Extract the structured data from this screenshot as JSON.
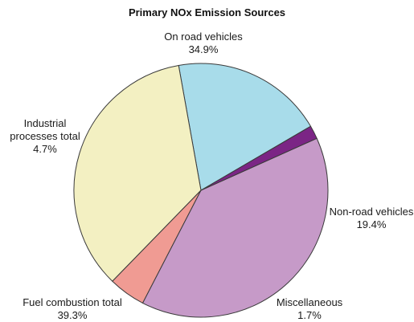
{
  "chart_data": {
    "type": "pie",
    "title": "Primary NOx Emission Sources",
    "start_angle_deg": 30.3,
    "direction": "counterclockwise",
    "slices": [
      {
        "name": "Non-road vehicles",
        "label_lines": [
          "Non-road vehicles"
        ],
        "value": 19.4,
        "value_label": "19.4%",
        "color": "#a8dcea"
      },
      {
        "name": "On road vehicles",
        "label_lines": [
          "On road vehicles"
        ],
        "value": 34.9,
        "value_label": "34.9%",
        "color": "#f3f0c2"
      },
      {
        "name": "Industrial processes total",
        "label_lines": [
          "Industrial",
          "processes total"
        ],
        "value": 4.7,
        "value_label": "4.7%",
        "color": "#f09b93"
      },
      {
        "name": "Fuel combustion total",
        "label_lines": [
          "Fuel combustion total"
        ],
        "value": 39.3,
        "value_label": "39.3%",
        "color": "#c69ac8"
      },
      {
        "name": "Miscellaneous",
        "label_lines": [
          "Miscellaneous"
        ],
        "value": 1.7,
        "value_label": "1.7%",
        "color": "#7b2585"
      }
    ]
  }
}
